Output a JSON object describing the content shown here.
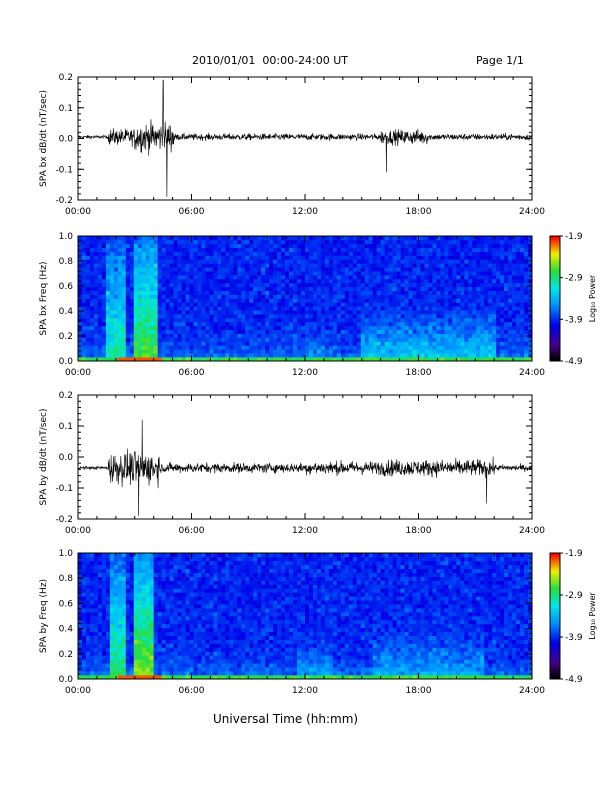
{
  "header": {
    "title": "2010/01/01  00:00-24:00 UT",
    "page": "Page 1/1"
  },
  "colors": {
    "trace": "#000000",
    "colormap": "jet",
    "background": "#ffffff"
  },
  "chart_data": [
    {
      "type": "line",
      "ylabel": "SPA bx dB/dt (nT/sec)",
      "xlabel": "",
      "x_ticks": [
        "00:00",
        "06:00",
        "12:00",
        "18:00",
        "24:00"
      ],
      "xlim": [
        0,
        24
      ],
      "ylim": [
        -0.2,
        0.2
      ],
      "y_ticks": [
        "0.2",
        "0.1",
        "0.0",
        "-0.1",
        "-0.2"
      ],
      "baseline": 0.005,
      "grid": false,
      "segments": [
        {
          "x": [
            0,
            1.6
          ],
          "amplitude": 0.01
        },
        {
          "x": [
            1.6,
            3.0
          ],
          "amplitude": 0.05
        },
        {
          "x": [
            3.0,
            5.1
          ],
          "amplitude": 0.09
        },
        {
          "x": [
            5.1,
            16.0
          ],
          "amplitude": 0.02
        },
        {
          "x": [
            16.0,
            18.5
          ],
          "amplitude": 0.045
        },
        {
          "x": [
            18.5,
            24
          ],
          "amplitude": 0.02
        }
      ],
      "peaks": [
        {
          "x": 4.5,
          "y": 0.19
        },
        {
          "x": 4.7,
          "y": -0.19
        },
        {
          "x": 16.3,
          "y": -0.11
        }
      ]
    },
    {
      "type": "heatmap",
      "ylabel": "SPA bx Freq (Hz)",
      "x_ticks": [
        "00:00",
        "06:00",
        "12:00",
        "18:00",
        "24:00"
      ],
      "xlim": [
        0,
        24
      ],
      "ylim": [
        0,
        1.0
      ],
      "y_ticks": [
        "1.0",
        "0.8",
        "0.6",
        "0.4",
        "0.2",
        "0.0"
      ],
      "colorbar": {
        "label": "Log₁₀ Power",
        "ticks": [
          "-1.9",
          "-2.9",
          "-3.9",
          "-4.9"
        ],
        "range": [
          -4.9,
          -1.9
        ]
      },
      "features": [
        {
          "x": [
            1.5,
            2.5
          ],
          "fmax": 1.0,
          "level": 0.65
        },
        {
          "x": [
            3.0,
            4.2
          ],
          "fmax": 1.0,
          "level": 0.75
        },
        {
          "x": [
            12.0,
            13.0
          ],
          "fmax": 0.3,
          "level": 0.5
        },
        {
          "x": [
            15.0,
            22.0
          ],
          "fmax": 0.45,
          "level": 0.55
        }
      ]
    },
    {
      "type": "line",
      "ylabel": "SPA by dB/dt (nT/sec)",
      "xlabel": "",
      "x_ticks": [
        "00:00",
        "06:00",
        "12:00",
        "18:00",
        "24:00"
      ],
      "xlim": [
        0,
        24
      ],
      "ylim": [
        -0.2,
        0.2
      ],
      "y_ticks": [
        "0.2",
        "0.1",
        "0.0",
        "-0.1",
        "-0.2"
      ],
      "baseline": -0.035,
      "grid": false,
      "segments": [
        {
          "x": [
            0,
            1.6
          ],
          "amplitude": 0.01
        },
        {
          "x": [
            1.6,
            4.3
          ],
          "amplitude": 0.1
        },
        {
          "x": [
            4.3,
            12.0
          ],
          "amplitude": 0.03
        },
        {
          "x": [
            12.0,
            16.0
          ],
          "amplitude": 0.04
        },
        {
          "x": [
            16.0,
            22.0
          ],
          "amplitude": 0.05
        },
        {
          "x": [
            22.0,
            24
          ],
          "amplitude": 0.02
        }
      ],
      "peaks": [
        {
          "x": 3.4,
          "y": 0.12
        },
        {
          "x": 3.2,
          "y": -0.19
        },
        {
          "x": 21.6,
          "y": -0.15
        }
      ]
    },
    {
      "type": "heatmap",
      "ylabel": "SPA by Freq (Hz)",
      "x_ticks": [
        "00:00",
        "06:00",
        "12:00",
        "18:00",
        "24:00"
      ],
      "xlim": [
        0,
        24
      ],
      "ylim": [
        0,
        1.0
      ],
      "y_ticks": [
        "1.0",
        "0.8",
        "0.6",
        "0.4",
        "0.2",
        "0.0"
      ],
      "colorbar": {
        "label": "Log₁₀ Power",
        "ticks": [
          "-1.9",
          "-2.9",
          "-3.9",
          "-4.9"
        ],
        "range": [
          -4.9,
          -1.9
        ]
      },
      "features": [
        {
          "x": [
            1.6,
            2.6
          ],
          "fmax": 1.0,
          "level": 0.7
        },
        {
          "x": [
            3.0,
            4.0
          ],
          "fmax": 1.0,
          "level": 0.8
        },
        {
          "x": [
            11.5,
            13.5
          ],
          "fmax": 0.35,
          "level": 0.5
        },
        {
          "x": [
            15.5,
            21.5
          ],
          "fmax": 0.45,
          "level": 0.5
        }
      ]
    }
  ],
  "footer": {
    "xlabel": "Universal Time (hh:mm)"
  }
}
